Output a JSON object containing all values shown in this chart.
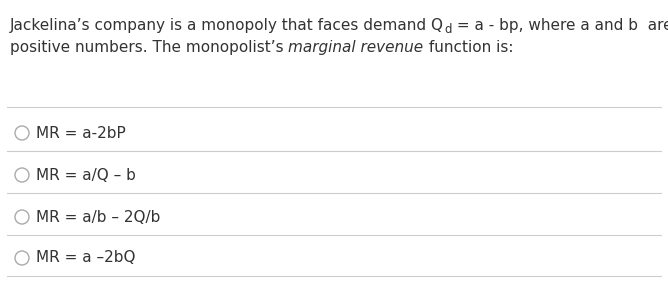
{
  "background_color": "#ffffff",
  "text_color": "#333333",
  "divider_color": "#cccccc",
  "circle_color": "#aaaaaa",
  "font_size": 11.0,
  "options": [
    "MR = a-2bP",
    "MR = a/Q – b",
    "MR = a/b – 2Q/b",
    "MR = a –2bQ"
  ],
  "q_line1_part1": "Jackelina’s company is a monopoly that faces demand Q",
  "q_line1_sub": "d",
  "q_line1_part2": " = a - bp, where a and b  are",
  "q_line2_part1": "positive numbers. The monopolist’s ",
  "q_line2_italic": "marginal revenue",
  "q_line2_part2": " function is:"
}
